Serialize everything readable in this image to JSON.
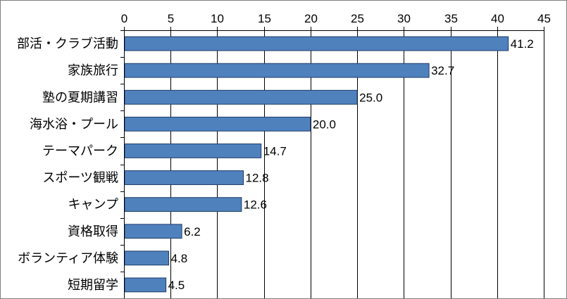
{
  "chart_data": {
    "type": "bar",
    "orientation": "horizontal",
    "categories": [
      "部活・クラブ活動",
      "家族旅行",
      "塾の夏期講習",
      "海水浴・プール",
      "テーマパーク",
      "スポーツ観戦",
      "キャンプ",
      "資格取得",
      "ボランティア体験",
      "短期留学"
    ],
    "values": [
      41.2,
      32.7,
      25.0,
      20.0,
      14.7,
      12.8,
      12.6,
      6.2,
      4.8,
      4.5
    ],
    "value_labels": [
      "41.2",
      "32.7",
      "25.0",
      "20.0",
      "14.7",
      "12.8",
      "12.6",
      "6.2",
      "4.8",
      "4.5"
    ],
    "xlim": [
      0,
      45
    ],
    "ticks": [
      0,
      5,
      10,
      15,
      20,
      25,
      30,
      35,
      40,
      45
    ],
    "tick_labels": [
      "0",
      "5",
      "10",
      "15",
      "20",
      "25",
      "30",
      "35",
      "40",
      "45"
    ],
    "x_axis_position": "top",
    "grid": "vertical",
    "legend": "none",
    "bar_color": "#4f81bd",
    "bar_edge_color": "#1f3a68",
    "grid_color": "#000000",
    "title": "",
    "xlabel": "",
    "ylabel": ""
  }
}
